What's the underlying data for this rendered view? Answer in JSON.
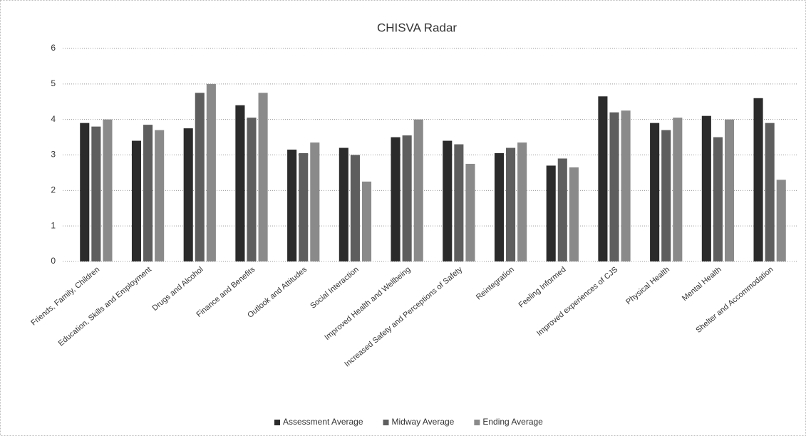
{
  "chart_data": {
    "type": "bar",
    "title": "CHISVA Radar",
    "categories": [
      "Friends, Family, Children",
      "Education, Skills and Employment",
      "Drugs and Alcohol",
      "Finance and Benefits",
      "Outlook and Attitudes",
      "Social Interaction",
      "Improved Health and Wellbeing",
      "Increased Safety and Perceptions of Safety",
      "Reintegration",
      "Feeling Informed",
      "Improved experiences of CJS",
      "Physical Health",
      "Mental Health",
      "Shelter and Accommodation"
    ],
    "series": [
      {
        "name": "Assessment Average",
        "color": "#2b2b2b",
        "values": [
          3.9,
          3.4,
          3.75,
          4.4,
          3.15,
          3.2,
          3.5,
          3.4,
          3.05,
          2.7,
          4.65,
          3.9,
          4.1,
          4.6
        ]
      },
      {
        "name": "Midway Average",
        "color": "#5e5e5e",
        "values": [
          3.8,
          3.85,
          4.75,
          4.05,
          3.05,
          3.0,
          3.55,
          3.3,
          3.2,
          2.9,
          4.2,
          3.7,
          3.5,
          3.9
        ]
      },
      {
        "name": "Ending Average",
        "color": "#8a8a8a",
        "values": [
          4.0,
          3.7,
          5.0,
          4.75,
          3.35,
          2.25,
          4.0,
          2.75,
          3.35,
          2.65,
          4.25,
          4.05,
          4.0,
          2.3
        ]
      }
    ],
    "ylim": [
      0,
      6
    ],
    "yticks": [
      0,
      1,
      2,
      3,
      4,
      5,
      6
    ],
    "grid": true,
    "legend": "bottom"
  }
}
